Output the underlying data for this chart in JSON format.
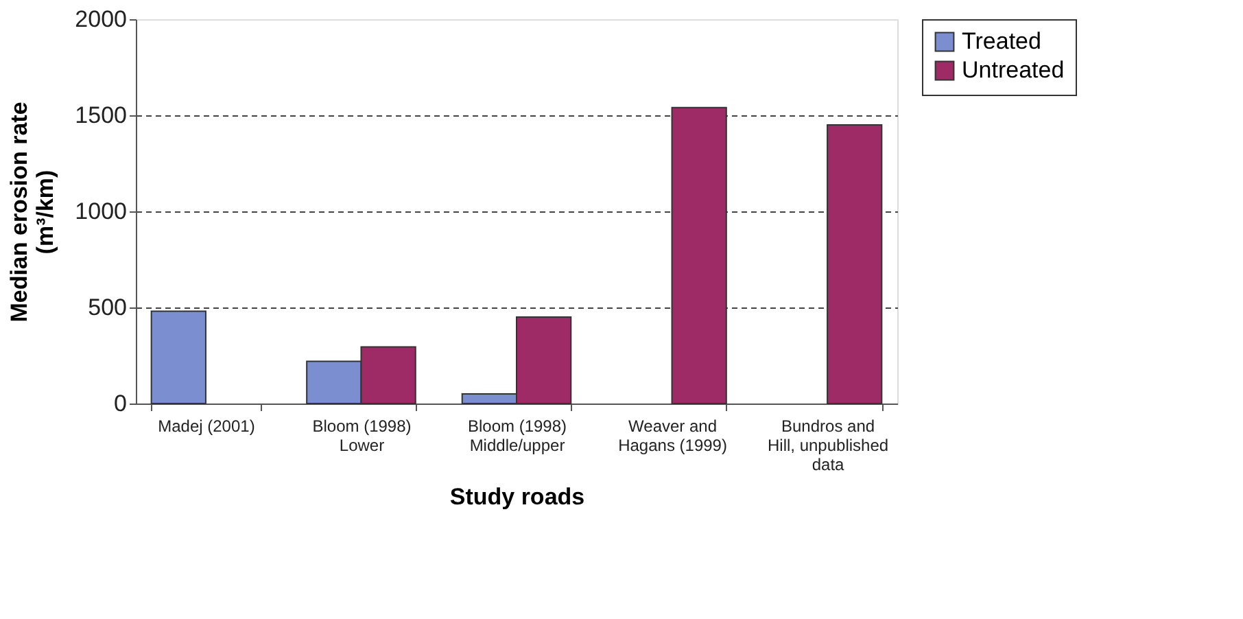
{
  "chart_data": {
    "type": "bar",
    "xlabel": "Study roads",
    "ylabel": "Median erosion rate\n(m³/km)",
    "categories": [
      "Madej (2001)",
      "Bloom (1998)\nLower",
      "Bloom (1998)\nMiddle/upper",
      "Weaver and\nHagans (1999)",
      "Bundros and\nHill, unpublished\ndata"
    ],
    "series": [
      {
        "name": "Treated",
        "color": "#7b8fd0",
        "values": [
          480,
          220,
          50,
          null,
          null
        ]
      },
      {
        "name": "Untreated",
        "color": "#9e2a66",
        "values": [
          null,
          295,
          450,
          1540,
          1450
        ]
      }
    ],
    "ylim": [
      0,
      2000
    ],
    "yticks": [
      0,
      500,
      1000,
      1500,
      2000
    ],
    "grid": "y",
    "line_style": "dashed",
    "legend": "right"
  }
}
